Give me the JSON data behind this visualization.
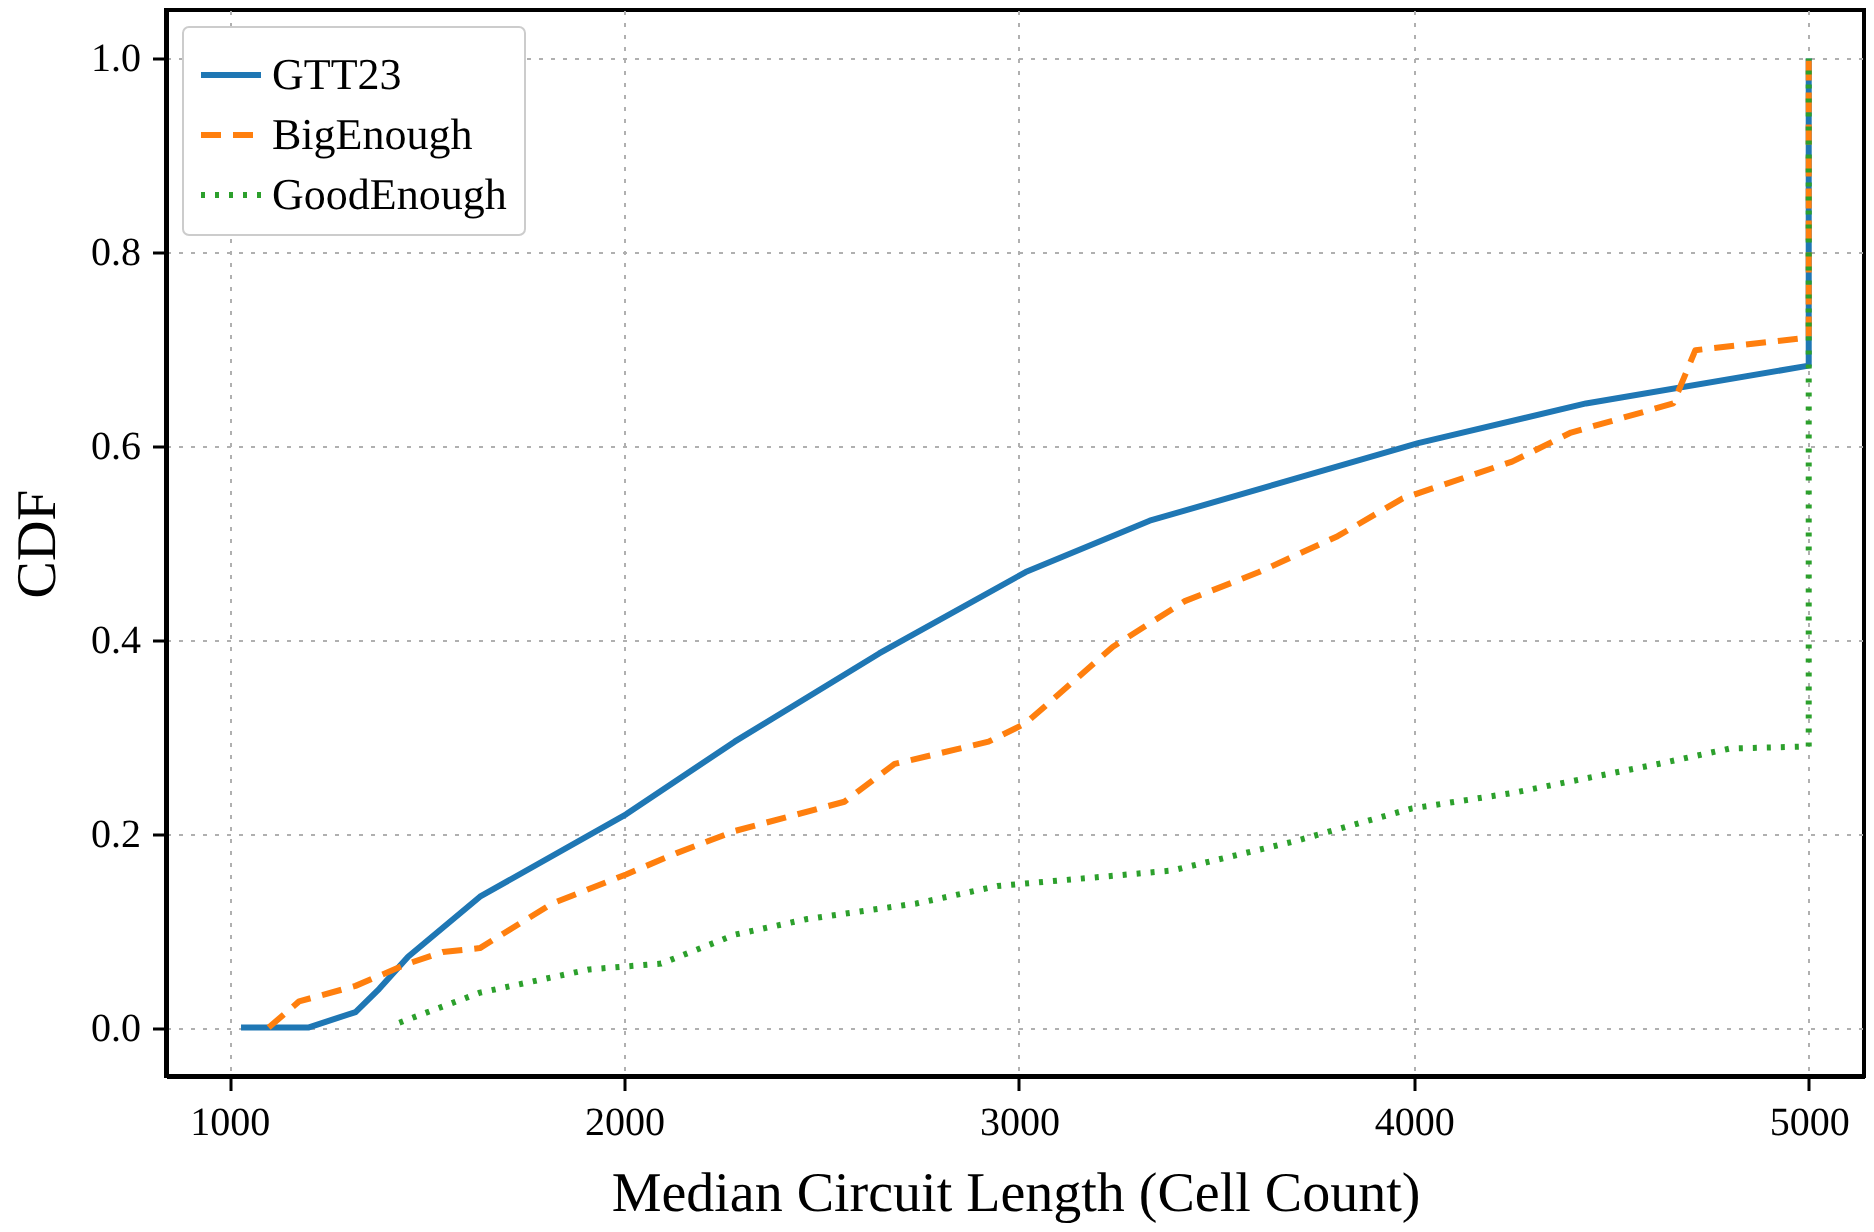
{
  "chart_data": {
    "type": "line",
    "xlabel": "Median Circuit Length (Cell Count)",
    "ylabel": "CDF",
    "xlim": [
      840,
      5140
    ],
    "ylim": [
      -0.05,
      1.05
    ],
    "xticks": [
      1000,
      2000,
      3000,
      4000,
      5000
    ],
    "yticks": [
      {
        "value": 0,
        "label": "0.0"
      },
      {
        "value": 0.2,
        "label": "0.2"
      },
      {
        "value": 0.4,
        "label": "0.4"
      },
      {
        "value": 0.6,
        "label": "0.6"
      },
      {
        "value": 0.8,
        "label": "0.8"
      },
      {
        "value": 1,
        "label": "1.0"
      }
    ],
    "grid": true,
    "legend": "top left",
    "marker": "none",
    "series": [
      {
        "name": "GTT23",
        "color": "#1f77b4",
        "line_style": "solid",
        "x": [
          1030,
          1200,
          1320,
          1380,
          1453,
          1635,
          2005,
          2280,
          2646,
          3017,
          3331,
          4011,
          4436,
          5000,
          5000
        ],
        "values": [
          0,
          0,
          0.016,
          0.04,
          0.073,
          0.135,
          0.22,
          0.295,
          0.386,
          0.47,
          0.523,
          0.603,
          0.644,
          0.683,
          1.0
        ]
      },
      {
        "name": "BigEnough",
        "color": "#ff7f0e",
        "line_style": "dashed",
        "x": [
          1100,
          1177,
          1320,
          1453,
          1541,
          1635,
          1818,
          2005,
          2133,
          2282,
          2558,
          2685,
          2923,
          3017,
          3238,
          3420,
          3608,
          3807,
          3972,
          4249,
          4398,
          4657,
          4713,
          5000,
          5000
        ],
        "values": [
          0,
          0.027,
          0.043,
          0.066,
          0.078,
          0.082,
          0.128,
          0.158,
          0.18,
          0.203,
          0.233,
          0.272,
          0.295,
          0.314,
          0.393,
          0.44,
          0.47,
          0.507,
          0.546,
          0.584,
          0.614,
          0.644,
          0.699,
          0.712,
          1.0
        ]
      },
      {
        "name": "GoodEnough",
        "color": "#2ca02c",
        "line_style": "dotted",
        "x": [
          1431,
          1635,
          1912,
          2094,
          2282,
          2464,
          2740,
          2945,
          3387,
          3696,
          3994,
          4249,
          4619,
          4801,
          5000,
          5000
        ],
        "values": [
          0.005,
          0.036,
          0.06,
          0.066,
          0.096,
          0.112,
          0.128,
          0.146,
          0.162,
          0.192,
          0.226,
          0.242,
          0.272,
          0.288,
          0.29,
          1.0
        ]
      }
    ]
  }
}
